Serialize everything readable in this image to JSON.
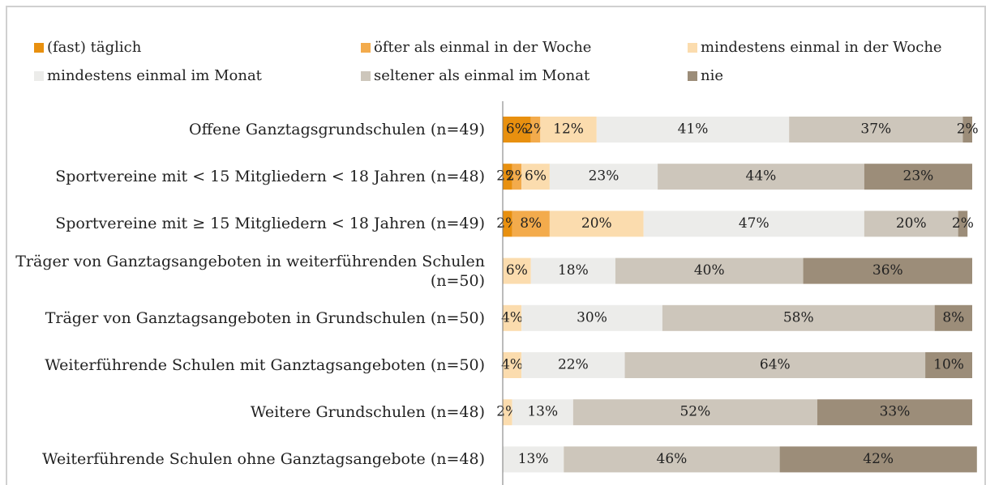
{
  "chart_data": {
    "type": "stacked-barh",
    "categories": [
      "Offene Ganztagsgrundschulen (n=49)",
      "Sportvereine mit < 15 Mitgliedern < 18 Jahren (n=48)",
      "Sportvereine mit ≥ 15 Mitgliedern < 18 Jahren (n=49)",
      "Träger von Ganztagsangeboten in weiterführenden Schulen (n=50)",
      "Träger von Ganztagsangeboten in Grundschulen (n=50)",
      "Weiterführende Schulen mit Ganztagsangeboten (n=50)",
      "Weitere Grundschulen (n=48)",
      "Weiterführende Schulen ohne Ganztagsangebote (n=48)"
    ],
    "xlim": [
      0,
      100
    ],
    "legend": "top",
    "series": [
      {
        "name": "(fast) täglich",
        "color": "#e8900f",
        "values": [
          6,
          2,
          2,
          null,
          null,
          null,
          null,
          null
        ],
        "value_labels": [
          "6%",
          "2%",
          "2%",
          null,
          null,
          null,
          null,
          null
        ]
      },
      {
        "name": "öfter als einmal in der Woche",
        "color": "#f3ab4c",
        "values": [
          2,
          2,
          8,
          null,
          null,
          null,
          null,
          null
        ],
        "value_labels": [
          "2%",
          "2%",
          "8%",
          null,
          null,
          null,
          null,
          null
        ]
      },
      {
        "name": "mindestens einmal in der Woche",
        "color": "#fbdcae",
        "values": [
          12,
          6,
          20,
          6,
          4,
          4,
          2,
          null
        ],
        "value_labels": [
          "12%",
          "6%",
          "20%",
          "6%",
          "4%",
          "4%",
          "2%",
          null
        ]
      },
      {
        "name": "mindestens einmal im Monat",
        "color": "#ececea",
        "values": [
          41,
          23,
          47,
          18,
          30,
          22,
          13,
          13
        ],
        "value_labels": [
          "41%",
          "23%",
          "47%",
          "18%",
          "30%",
          "22%",
          "13%",
          "13%"
        ]
      },
      {
        "name": "seltener als einmal im Monat",
        "color": "#cdc6bb",
        "values": [
          37,
          44,
          20,
          40,
          58,
          64,
          52,
          46
        ],
        "value_labels": [
          "37%",
          "44%",
          "20%",
          "40%",
          "58%",
          "64%",
          "52%",
          "46%"
        ]
      },
      {
        "name": "nie",
        "color": "#9c8d79",
        "values": [
          2,
          23,
          2,
          36,
          8,
          10,
          33,
          42
        ],
        "value_labels": [
          "2%",
          "23%",
          "2%",
          "36%",
          "8%",
          "10%",
          "33%",
          "42%"
        ]
      }
    ]
  }
}
